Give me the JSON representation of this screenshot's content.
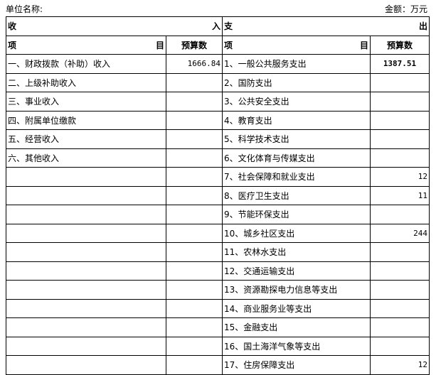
{
  "header": {
    "unit_label": "单位名称:",
    "amount_label": "金额：万元"
  },
  "table": {
    "income_left": "收",
    "income_right": "入",
    "expense_left": "支",
    "expense_right": "出",
    "item_left": "项",
    "item_right": "目",
    "budget": "预算数",
    "rows": [
      {
        "income": "一、财政拨款（补助）收入",
        "income_amount": "1666.84",
        "expense": "1、一般公共服务支出",
        "expense_amount": "1387.51"
      },
      {
        "income": "二、上级补助收入",
        "income_amount": "",
        "expense": "2、国防支出",
        "expense_amount": ""
      },
      {
        "income": "三、事业收入",
        "income_amount": "",
        "expense": "3、公共安全支出",
        "expense_amount": ""
      },
      {
        "income": "四、附属单位缴款",
        "income_amount": "",
        "expense": "4、教育支出",
        "expense_amount": ""
      },
      {
        "income": "五、经营收入",
        "income_amount": "",
        "expense": "5、科学技术支出",
        "expense_amount": ""
      },
      {
        "income": "六、其他收入",
        "income_amount": "",
        "expense": "6、文化体育与传媒支出",
        "expense_amount": ""
      },
      {
        "income": "",
        "income_amount": "",
        "expense": "7、社会保障和就业支出",
        "expense_amount": "12"
      },
      {
        "income": "",
        "income_amount": "",
        "expense": "8、医疗卫生支出",
        "expense_amount": "11"
      },
      {
        "income": "",
        "income_amount": "",
        "expense": "9、节能环保支出",
        "expense_amount": ""
      },
      {
        "income": "",
        "income_amount": "",
        "expense": "10、城乡社区支出",
        "expense_amount": "244"
      },
      {
        "income": "",
        "income_amount": "",
        "expense": "11、农林水支出",
        "expense_amount": ""
      },
      {
        "income": "",
        "income_amount": "",
        "expense": "12、交通运输支出",
        "expense_amount": ""
      },
      {
        "income": "",
        "income_amount": "",
        "expense": "13、资源勘探电力信息等支出",
        "expense_amount": ""
      },
      {
        "income": "",
        "income_amount": "",
        "expense": "14、商业服务业等支出",
        "expense_amount": ""
      },
      {
        "income": "",
        "income_amount": "",
        "expense": "15、金融支出",
        "expense_amount": ""
      },
      {
        "income": "",
        "income_amount": "",
        "expense": "16、国土海洋气象等支出",
        "expense_amount": ""
      },
      {
        "income": "",
        "income_amount": "",
        "expense": "17、住房保障支出",
        "expense_amount": "12"
      }
    ]
  }
}
